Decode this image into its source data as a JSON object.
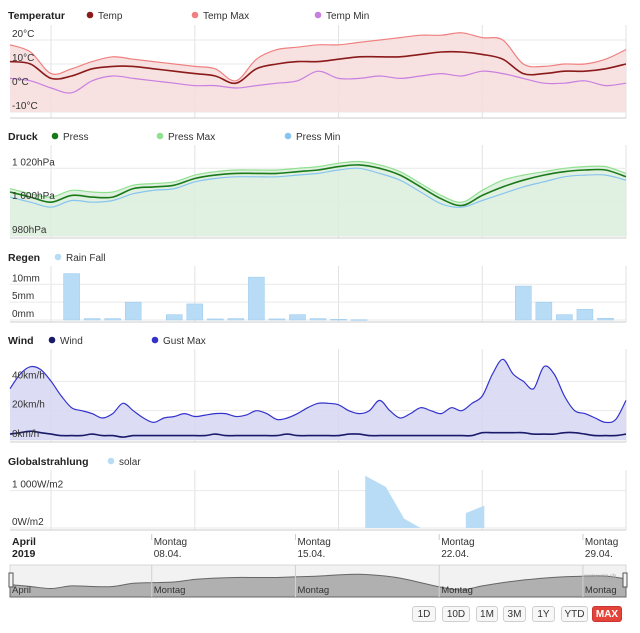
{
  "chart_data": [
    {
      "type": "line",
      "title": "Temperatur",
      "ylim": [
        -10,
        25
      ],
      "yticks": [
        "20°C",
        "10°C",
        "0°C",
        "-10°C"
      ],
      "ytick_values": [
        20,
        10,
        0,
        -10
      ],
      "x_days": [
        0,
        1,
        2,
        3,
        4,
        5,
        6,
        7,
        8,
        9,
        10,
        11,
        12,
        13,
        14,
        15,
        16,
        17,
        18,
        19,
        20,
        21,
        22,
        23,
        24,
        25,
        26,
        27,
        28,
        29,
        30
      ],
      "series": [
        {
          "name": "Temp",
          "color": "#8b1a1a",
          "values": [
            11,
            10,
            4,
            5,
            8,
            9,
            9,
            8,
            7,
            6,
            5,
            2,
            8,
            10,
            11,
            11,
            12,
            13,
            13,
            13,
            14,
            15,
            15,
            14,
            12,
            6,
            6,
            7,
            7,
            8,
            10
          ]
        },
        {
          "name": "Temp Max",
          "color": "#f08080",
          "values": [
            18,
            15,
            6,
            8,
            11,
            13,
            12,
            11,
            10,
            9,
            8,
            3,
            12,
            16,
            17,
            18,
            18,
            19,
            20,
            21,
            22,
            22,
            23,
            21,
            20,
            10,
            9,
            10,
            10,
            12,
            16
          ]
        },
        {
          "name": "Temp Min",
          "color": "#c880e0",
          "values": [
            4,
            3,
            0,
            -2,
            3,
            5,
            4,
            3,
            2,
            1,
            1,
            0,
            1,
            2,
            3,
            7,
            4,
            4,
            5,
            4,
            5,
            6,
            5,
            7,
            6,
            4,
            2,
            2,
            3,
            1,
            2
          ]
        }
      ]
    },
    {
      "type": "line",
      "title": "Druck",
      "ylim": [
        980,
        1032
      ],
      "yticks": [
        "1 020hPa",
        "1 000hPa",
        "980hPa"
      ],
      "ytick_values": [
        1020,
        1000,
        980
      ],
      "x_days": [
        0,
        1,
        2,
        3,
        4,
        5,
        6,
        7,
        8,
        9,
        10,
        11,
        12,
        13,
        14,
        15,
        16,
        17,
        18,
        19,
        20,
        21,
        22,
        23,
        24,
        25,
        26,
        27,
        28,
        29,
        30
      ],
      "series": [
        {
          "name": "Press",
          "color": "#1a7a1a",
          "values": [
            1006,
            1003,
            1000,
            1004,
            1003,
            1003,
            1008,
            1009,
            1010,
            1014,
            1016,
            1017,
            1017,
            1017,
            1018,
            1019,
            1021,
            1022,
            1020,
            1016,
            1009,
            1002,
            998,
            1004,
            1009,
            1013,
            1016,
            1018,
            1019,
            1019,
            1015
          ]
        },
        {
          "name": "Press Max",
          "color": "#90e090",
          "values": [
            1008,
            1005,
            1003,
            1007,
            1006,
            1006,
            1010,
            1011,
            1012,
            1016,
            1018,
            1019,
            1019,
            1019,
            1020,
            1021,
            1023,
            1024,
            1022,
            1018,
            1011,
            1004,
            1000,
            1007,
            1013,
            1016,
            1018,
            1020,
            1021,
            1021,
            1017
          ]
        },
        {
          "name": "Press Min",
          "color": "#88c4f0",
          "values": [
            1003,
            1000,
            997,
            1001,
            1000,
            1001,
            1005,
            1007,
            1008,
            1012,
            1014,
            1015,
            1015,
            1015,
            1016,
            1017,
            1019,
            1020,
            1017,
            1013,
            1006,
            999,
            997,
            1001,
            1005,
            1009,
            1012,
            1015,
            1016,
            1016,
            1013
          ]
        }
      ]
    },
    {
      "type": "bar",
      "title": "Regen",
      "ylim": [
        0,
        14
      ],
      "yticks": [
        "10mm",
        "5mm",
        "0mm"
      ],
      "ytick_values": [
        10,
        5,
        0
      ],
      "series": [
        {
          "name": "Rain Fall",
          "color": "#b8dcf5",
          "x_days": [
            3,
            4,
            5,
            6,
            8,
            9,
            10,
            11,
            12,
            13,
            14,
            15,
            16,
            17,
            25,
            26,
            27,
            28,
            29
          ],
          "values": [
            13,
            0.4,
            0.4,
            5,
            1.5,
            4.5,
            0.3,
            0.4,
            12,
            0.3,
            1.5,
            0.4,
            0.2,
            0.1,
            9.5,
            5,
            1.5,
            3,
            0.5
          ]
        }
      ]
    },
    {
      "type": "area",
      "title": "Wind",
      "ylim": [
        0,
        60
      ],
      "yticks": [
        "40km/h",
        "20km/h",
        "0km/h"
      ],
      "ytick_values": [
        40,
        20,
        0
      ],
      "x_days": [
        0,
        0.5,
        1,
        1.5,
        2,
        2.5,
        3,
        3.5,
        4,
        4.5,
        5,
        5.5,
        6,
        6.5,
        7,
        7.5,
        8,
        8.5,
        9,
        9.5,
        10,
        10.5,
        11,
        11.5,
        12,
        12.5,
        13,
        13.5,
        14,
        14.5,
        15,
        15.5,
        16,
        16.5,
        17,
        17.5,
        18,
        18.5,
        19,
        19.5,
        20,
        20.5,
        21,
        21.5,
        22,
        22.5,
        23,
        23.5,
        24,
        24.5,
        25,
        25.5,
        26,
        26.5,
        27,
        27.5,
        28,
        28.5,
        29,
        29.5,
        30
      ],
      "series": [
        {
          "name": "Wind",
          "color": "#1a1a6a",
          "values": [
            4,
            5,
            6,
            5,
            4,
            3,
            3,
            3,
            4,
            3,
            3,
            2,
            3,
            3,
            3,
            3,
            3,
            3,
            3,
            3,
            4,
            3,
            3,
            3,
            3,
            3,
            3,
            4,
            3,
            3,
            3,
            3,
            3,
            4,
            4,
            3,
            3,
            3,
            3,
            3,
            3,
            3,
            3,
            3,
            3,
            3,
            5,
            5,
            5,
            5,
            5,
            4,
            4,
            4,
            5,
            5,
            4,
            3,
            3,
            3,
            4
          ]
        },
        {
          "name": "Gust Max",
          "color": "#3333cc",
          "values": [
            35,
            45,
            50,
            48,
            40,
            30,
            22,
            20,
            18,
            15,
            18,
            25,
            20,
            15,
            12,
            15,
            16,
            18,
            16,
            17,
            18,
            18,
            16,
            17,
            20,
            18,
            14,
            15,
            18,
            22,
            25,
            25,
            24,
            20,
            18,
            20,
            27,
            20,
            15,
            18,
            22,
            20,
            18,
            22,
            20,
            25,
            30,
            45,
            55,
            45,
            40,
            35,
            50,
            45,
            30,
            20,
            18,
            15,
            12,
            14,
            27
          ]
        }
      ]
    },
    {
      "type": "area",
      "title": "Globalstrahlung",
      "ylim": [
        0,
        1500
      ],
      "yticks": [
        "1 000W/m2",
        "0W/m2"
      ],
      "ytick_values": [
        1000,
        0
      ],
      "series": [
        {
          "name": "solar",
          "color": "#b8dcf5",
          "x_days": [
            17.3,
            18.3,
            19.2,
            20,
            22.2,
            23.1
          ],
          "values": [
            1400,
            1100,
            250,
            0,
            400,
            600
          ]
        }
      ]
    }
  ],
  "x_axis": {
    "month_label": "April",
    "year_label": "2019",
    "ticks": [
      {
        "day": 7,
        "weekday": "Montag",
        "date": "08.04."
      },
      {
        "day": 14,
        "weekday": "Montag",
        "date": "15.04."
      },
      {
        "day": 21,
        "weekday": "Montag",
        "date": "22.04."
      },
      {
        "day": 28,
        "weekday": "Montag",
        "date": "29.04."
      }
    ]
  },
  "navigator": {
    "labels": [
      "April",
      "Montag",
      "Montag",
      "Montag",
      "Montag"
    ],
    "values": [
      1006,
      1003,
      1000,
      1004,
      1003,
      1003,
      1008,
      1009,
      1010,
      1014,
      1016,
      1017,
      1017,
      1017,
      1018,
      1019,
      1021,
      1022,
      1020,
      1016,
      1009,
      1002,
      998,
      1004,
      1009,
      1013,
      1016,
      1018,
      1019,
      1019,
      1015
    ]
  },
  "range_buttons": [
    "1D",
    "10D",
    "1M",
    "3M",
    "1Y",
    "YTD",
    "MAX"
  ],
  "active_range": "MAX",
  "watermark": "www.urig.ch"
}
